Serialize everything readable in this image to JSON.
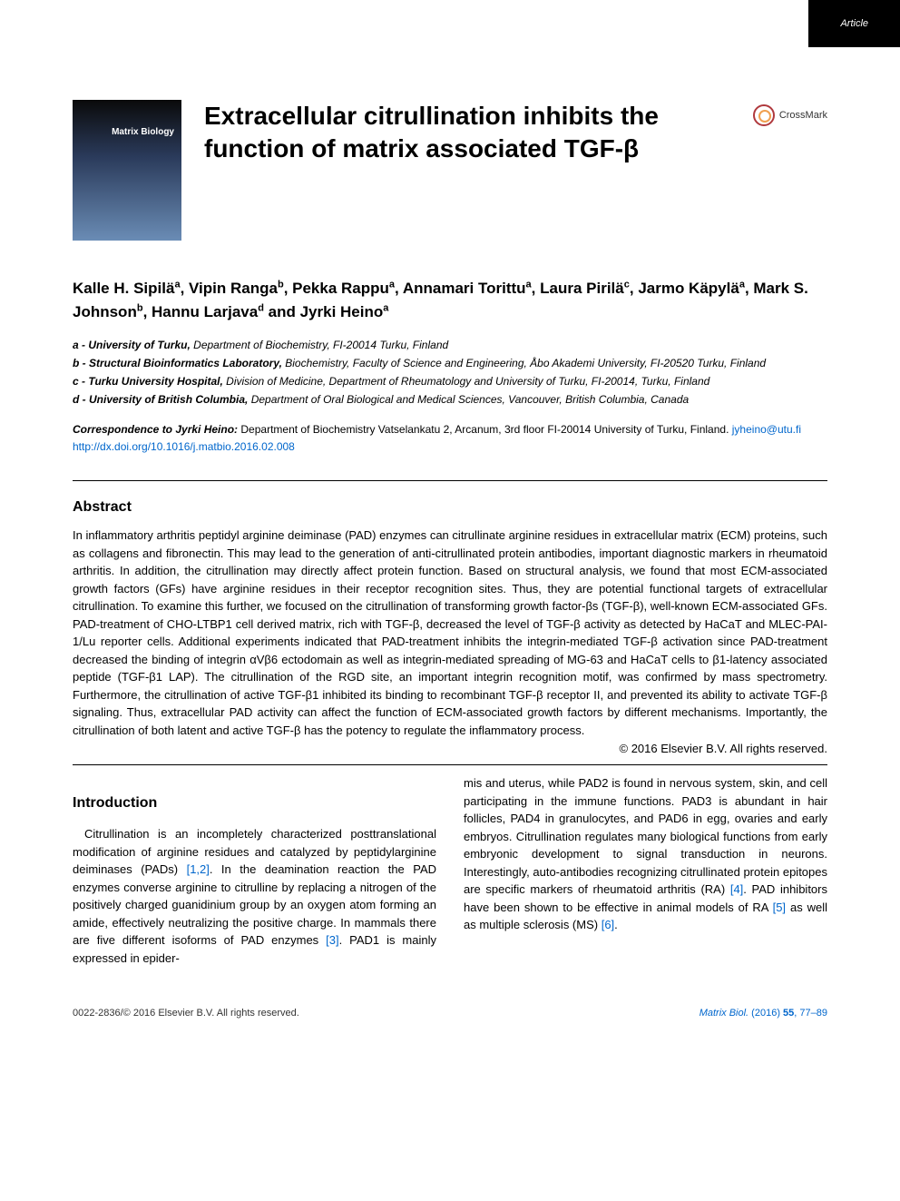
{
  "badge": "Article",
  "cover": {
    "journal_label": "Matrix Biology"
  },
  "title": "Extracellular citrullination inhibits the function of matrix associated TGF-β",
  "crossmark_label": "CrossMark",
  "authors": [
    {
      "name": "Kalle H. Sipilä",
      "sup": "a"
    },
    {
      "name": "Vipin Ranga",
      "sup": "b"
    },
    {
      "name": "Pekka Rappu",
      "sup": "a"
    },
    {
      "name": "Annamari Torittu",
      "sup": "a"
    },
    {
      "name": "Laura Pirilä",
      "sup": "c"
    },
    {
      "name": "Jarmo Käpylä",
      "sup": "a"
    },
    {
      "name": "Mark S. Johnson",
      "sup": "b"
    },
    {
      "name": "Hannu Larjava",
      "sup": "d"
    },
    {
      "name": "Jyrki Heino",
      "sup": "a"
    }
  ],
  "affiliations": [
    {
      "key": "a",
      "inst": "University of Turku,",
      "dept": "Department of Biochemistry, FI-20014 Turku, Finland"
    },
    {
      "key": "b",
      "inst": "Structural Bioinformatics Laboratory,",
      "dept": "Biochemistry, Faculty of Science and Engineering, Åbo Akademi University, FI-20520 Turku, Finland"
    },
    {
      "key": "c",
      "inst": "Turku University Hospital,",
      "dept": "Division of Medicine, Department of Rheumatology and University of Turku, FI-20014, Turku, Finland"
    },
    {
      "key": "d",
      "inst": "University of British Columbia,",
      "dept": "Department of Oral Biological and Medical Sciences, Vancouver, British Columbia, Canada"
    }
  ],
  "correspondence": {
    "label": "Correspondence to Jyrki Heino:",
    "text": "Department of Biochemistry Vatselankatu 2, Arcanum, 3rd floor FI-20014 University of Turku, Finland.",
    "email": "jyheino@utu.fi"
  },
  "doi": "http://dx.doi.org/10.1016/j.matbio.2016.02.008",
  "abstract": {
    "heading": "Abstract",
    "text": "In inflammatory arthritis peptidyl arginine deiminase (PAD) enzymes can citrullinate arginine residues in extracellular matrix (ECM) proteins, such as collagens and fibronectin. This may lead to the generation of anti-citrullinated protein antibodies, important diagnostic markers in rheumatoid arthritis. In addition, the citrullination may directly affect protein function. Based on structural analysis, we found that most ECM-associated growth factors (GFs) have arginine residues in their receptor recognition sites. Thus, they are potential functional targets of extracellular citrullination. To examine this further, we focused on the citrullination of transforming growth factor-βs (TGF-β), well-known ECM-associated GFs. PAD-treatment of CHO-LTBP1 cell derived matrix, rich with TGF-β, decreased the level of TGF-β activity as detected by HaCaT and MLEC-PAI-1/Lu reporter cells. Additional experiments indicated that PAD-treatment inhibits the integrin-mediated TGF-β activation since PAD-treatment decreased the binding of integrin αVβ6 ectodomain as well as integrin-mediated spreading of MG-63 and HaCaT cells to β1-latency associated peptide (TGF-β1 LAP). The citrullination of the RGD site, an important integrin recognition motif, was confirmed by mass spectrometry. Furthermore, the citrullination of active TGF-β1 inhibited its binding to recombinant TGF-β receptor II, and prevented its ability to activate TGF-β signaling. Thus, extracellular PAD activity can affect the function of ECM-associated growth factors by different mechanisms. Importantly, the citrullination of both latent and active TGF-β has the potency to regulate the inflammatory process.",
    "copyright": "© 2016 Elsevier B.V. All rights reserved."
  },
  "introduction": {
    "heading": "Introduction",
    "col1_text": "Citrullination is an incompletely characterized posttranslational modification of arginine residues and catalyzed by peptidylarginine deiminases (PADs) ",
    "ref1": "[1,2]",
    "col1_text2": ". In the deamination reaction the PAD enzymes converse arginine to citrulline by replacing a nitrogen of the positively charged guanidinium group by an oxygen atom forming an amide, effectively neutralizing the positive charge. In mammals there are five different isoforms of PAD enzymes ",
    "ref2": "[3]",
    "col1_text3": ". PAD1 is mainly expressed in epider-",
    "col2_text": "mis and uterus, while PAD2 is found in nervous system, skin, and cell participating in the immune functions. PAD3 is abundant in hair follicles, PAD4 in granulocytes, and PAD6 in egg, ovaries and early embryos. Citrullination regulates many biological functions from early embryonic development to signal transduction in neurons. Interestingly, auto-antibodies recognizing citrullinated protein epitopes are specific markers of rheumatoid arthritis (RA) ",
    "ref3": "[4]",
    "col2_text2": ". PAD inhibitors have been shown to be effective in animal models of RA ",
    "ref4": "[5]",
    "col2_text3": " as well as multiple sclerosis (MS) ",
    "ref5": "[6]",
    "col2_text4": "."
  },
  "footer": {
    "left": "0022-2836/© 2016 Elsevier B.V. All rights reserved.",
    "right_journal": "Matrix Biol.",
    "right_issue": " (2016) ",
    "right_volume": "55",
    "right_pages": ", 77–89"
  },
  "colors": {
    "link": "#0066cc",
    "badge_bg": "#000000",
    "badge_fg": "#ffffff",
    "text": "#000000"
  }
}
